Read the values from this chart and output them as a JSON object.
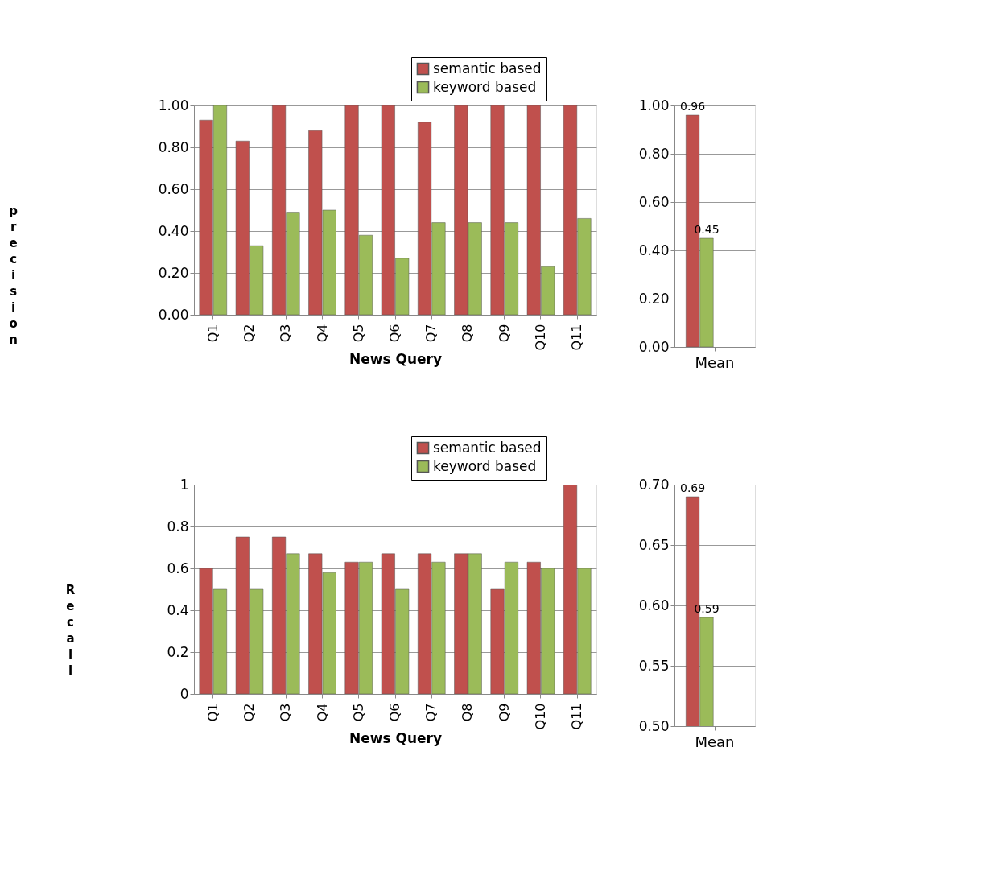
{
  "chart_data": [
    {
      "type": "bar",
      "xlabel": "News Query",
      "ylabel": "precision",
      "categories": [
        "Q1",
        "Q2",
        "Q3",
        "Q4",
        "Q5",
        "Q6",
        "Q7",
        "Q8",
        "Q9",
        "Q10",
        "Q11"
      ],
      "series": [
        {
          "name": "semantic based",
          "color": "#c0504d",
          "values": [
            0.93,
            0.83,
            1.0,
            0.88,
            1.0,
            1.0,
            0.92,
            1.0,
            1.0,
            1.0,
            1.0
          ]
        },
        {
          "name": "keyword based",
          "color": "#9bbb59",
          "values": [
            1.0,
            0.33,
            0.49,
            0.5,
            0.38,
            0.27,
            0.44,
            0.44,
            0.44,
            0.23,
            0.46
          ]
        }
      ],
      "ylim": [
        0,
        1
      ],
      "yticks": [
        {
          "value": 0,
          "label": "0.00"
        },
        {
          "value": 0.2,
          "label": "0.20"
        },
        {
          "value": 0.4,
          "label": "0.40"
        },
        {
          "value": 0.6,
          "label": "0.60"
        },
        {
          "value": 0.8,
          "label": "0.80"
        },
        {
          "value": 1,
          "label": "1.00"
        }
      ],
      "grid": "y",
      "legend": "top right"
    },
    {
      "type": "bar",
      "categories": [
        "Mean"
      ],
      "series": [
        {
          "color": "#c0504d",
          "values": [
            0.96
          ]
        },
        {
          "color": "#9bbb59",
          "values": [
            0.45
          ]
        }
      ],
      "ylim": [
        0,
        1
      ],
      "yticks": [
        {
          "value": 0,
          "label": "0.00"
        },
        {
          "value": 0.2,
          "label": "0.20"
        },
        {
          "value": 0.4,
          "label": "0.40"
        },
        {
          "value": 0.6,
          "label": "0.60"
        },
        {
          "value": 0.8,
          "label": "0.80"
        },
        {
          "value": 1,
          "label": "1.00"
        }
      ],
      "grid": "y",
      "data_labels": true
    },
    {
      "type": "bar",
      "xlabel": "News Query",
      "ylabel": "Recall",
      "categories": [
        "Q1",
        "Q2",
        "Q3",
        "Q4",
        "Q5",
        "Q6",
        "Q7",
        "Q8",
        "Q9",
        "Q10",
        "Q11"
      ],
      "series": [
        {
          "name": "semantic based",
          "color": "#c0504d",
          "values": [
            0.6,
            0.75,
            0.75,
            0.67,
            0.63,
            0.67,
            0.67,
            0.67,
            0.5,
            0.63,
            1.0
          ]
        },
        {
          "name": "keyword based",
          "color": "#9bbb59",
          "values": [
            0.5,
            0.5,
            0.67,
            0.58,
            0.63,
            0.5,
            0.63,
            0.67,
            0.63,
            0.6,
            0.6
          ]
        }
      ],
      "ylim": [
        0,
        1
      ],
      "yticks": [
        0,
        0.2,
        0.4,
        0.6,
        0.8,
        1
      ],
      "grid": "y",
      "legend": "top right"
    },
    {
      "type": "bar",
      "categories": [
        "Mean"
      ],
      "series": [
        {
          "color": "#c0504d",
          "values": [
            0.69
          ]
        },
        {
          "color": "#9bbb59",
          "values": [
            0.59
          ]
        }
      ],
      "ylim": [
        0.5,
        0.7
      ],
      "yticks": [
        {
          "value": 0.5,
          "label": "0.50"
        },
        {
          "value": 0.55,
          "label": "0.55"
        },
        {
          "value": 0.6,
          "label": "0.60"
        },
        {
          "value": 0.65,
          "label": "0.65"
        },
        {
          "value": 0.7,
          "label": "0.70"
        }
      ],
      "grid": "y",
      "data_labels": true
    }
  ]
}
